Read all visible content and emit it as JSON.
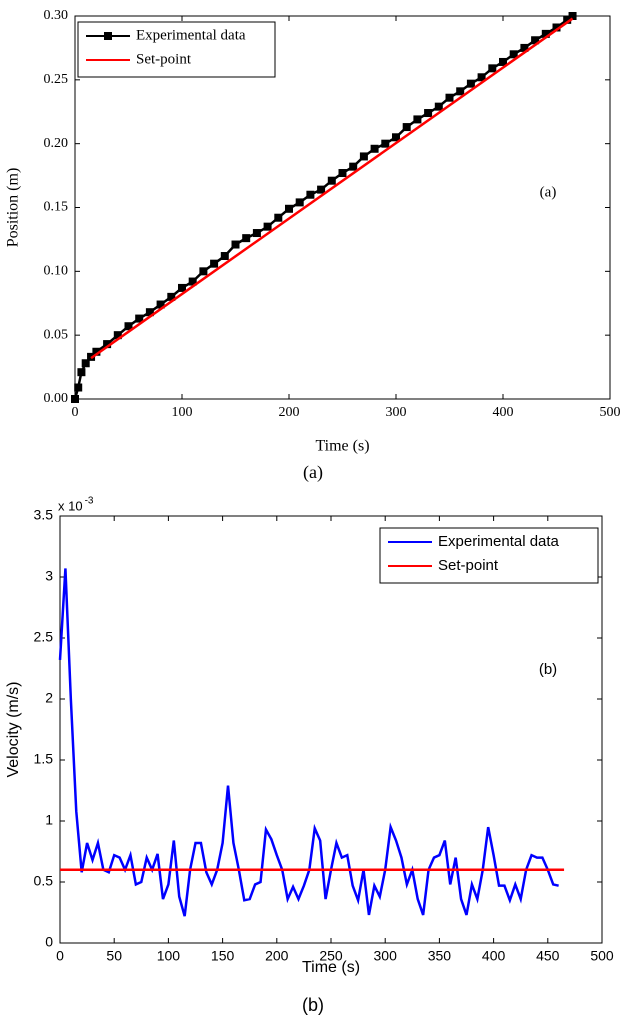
{
  "chart_data": [
    {
      "type": "line",
      "xlabel": "Time (s)",
      "ylabel": "Position (m)",
      "annotation": "(a)",
      "caption": "(a)",
      "xlim": [
        0,
        500
      ],
      "xticks": [
        0,
        100,
        200,
        300,
        400,
        500
      ],
      "ylim": [
        0,
        0.3
      ],
      "yticks": [
        {
          "value": 0,
          "label": "0.00"
        },
        {
          "value": 0.05,
          "label": "0.05"
        },
        {
          "value": 0.1,
          "label": "0.10"
        },
        {
          "value": 0.15,
          "label": "0.15"
        },
        {
          "value": 0.2,
          "label": "0.20"
        },
        {
          "value": 0.25,
          "label": "0.25"
        },
        {
          "value": 0.3,
          "label": "0.30"
        }
      ],
      "legend": "upper left",
      "series": [
        {
          "name": "Experimental data",
          "color": "#000000",
          "marker": "square",
          "x": [
            0,
            3,
            6,
            10,
            15,
            20,
            30,
            40,
            50,
            60,
            70,
            80,
            90,
            100,
            110,
            120,
            130,
            140,
            150,
            160,
            170,
            180,
            190,
            200,
            210,
            220,
            230,
            240,
            250,
            260,
            270,
            280,
            290,
            300,
            310,
            320,
            330,
            340,
            350,
            360,
            370,
            380,
            390,
            400,
            410,
            420,
            430,
            440,
            450,
            460,
            465
          ],
          "values": [
            0.0,
            0.009,
            0.021,
            0.028,
            0.033,
            0.037,
            0.043,
            0.05,
            0.057,
            0.063,
            0.068,
            0.074,
            0.08,
            0.087,
            0.092,
            0.1,
            0.106,
            0.112,
            0.121,
            0.126,
            0.13,
            0.135,
            0.142,
            0.149,
            0.154,
            0.16,
            0.164,
            0.171,
            0.177,
            0.182,
            0.19,
            0.196,
            0.2,
            0.205,
            0.213,
            0.219,
            0.224,
            0.229,
            0.236,
            0.241,
            0.247,
            0.252,
            0.259,
            0.264,
            0.27,
            0.275,
            0.281,
            0.286,
            0.291,
            0.297,
            0.3
          ]
        },
        {
          "name": "Set-point",
          "color": "#ff0000",
          "x": [
            15,
            465
          ],
          "values": [
            0.032,
            0.298
          ]
        }
      ]
    },
    {
      "type": "line",
      "xlabel": "Time (s)",
      "ylabel": "Velocity (m/s)",
      "annotation": "(b)",
      "caption": "(b)",
      "y_scale_label": "x 10",
      "y_scale_exponent": "-3",
      "xlim": [
        0,
        500
      ],
      "xticks": [
        0,
        50,
        100,
        150,
        200,
        250,
        300,
        350,
        400,
        450,
        500
      ],
      "ylim": [
        0,
        3.5
      ],
      "yticks": [
        0,
        0.5,
        1,
        1.5,
        2,
        2.5,
        3,
        3.5
      ],
      "legend": "upper right",
      "series": [
        {
          "name": "Experimental data",
          "color": "#0000ff",
          "x": [
            0,
            5,
            10,
            15,
            20,
            25,
            30,
            35,
            40,
            45,
            50,
            55,
            60,
            65,
            70,
            75,
            80,
            85,
            90,
            95,
            100,
            105,
            110,
            115,
            120,
            125,
            130,
            135,
            140,
            145,
            150,
            155,
            160,
            165,
            170,
            175,
            180,
            185,
            190,
            195,
            200,
            205,
            210,
            215,
            220,
            225,
            230,
            235,
            240,
            245,
            250,
            255,
            260,
            265,
            270,
            275,
            280,
            285,
            290,
            295,
            300,
            305,
            310,
            315,
            320,
            325,
            330,
            335,
            340,
            345,
            350,
            355,
            360,
            365,
            370,
            375,
            380,
            385,
            390,
            395,
            400,
            405,
            410,
            415,
            420,
            425,
            430,
            435,
            440,
            445,
            450,
            455,
            460
          ],
          "values": [
            2.32,
            3.07,
            2.0,
            1.08,
            0.58,
            0.82,
            0.68,
            0.82,
            0.6,
            0.58,
            0.72,
            0.7,
            0.6,
            0.72,
            0.48,
            0.5,
            0.7,
            0.6,
            0.73,
            0.36,
            0.48,
            0.84,
            0.38,
            0.22,
            0.6,
            0.82,
            0.82,
            0.58,
            0.48,
            0.6,
            0.82,
            1.29,
            0.82,
            0.6,
            0.35,
            0.36,
            0.48,
            0.5,
            0.93,
            0.85,
            0.72,
            0.6,
            0.36,
            0.46,
            0.36,
            0.47,
            0.6,
            0.94,
            0.84,
            0.36,
            0.6,
            0.82,
            0.7,
            0.72,
            0.47,
            0.35,
            0.6,
            0.23,
            0.47,
            0.38,
            0.6,
            0.95,
            0.84,
            0.7,
            0.48,
            0.6,
            0.36,
            0.23,
            0.6,
            0.7,
            0.72,
            0.84,
            0.48,
            0.7,
            0.36,
            0.23,
            0.48,
            0.36,
            0.6,
            0.95,
            0.72,
            0.47,
            0.47,
            0.35,
            0.48,
            0.36,
            0.6,
            0.72,
            0.7,
            0.7,
            0.6,
            0.48,
            0.47
          ]
        },
        {
          "name": "Set-point",
          "color": "#ff0000",
          "x": [
            0,
            465
          ],
          "values": [
            0.6,
            0.6
          ]
        }
      ]
    }
  ]
}
